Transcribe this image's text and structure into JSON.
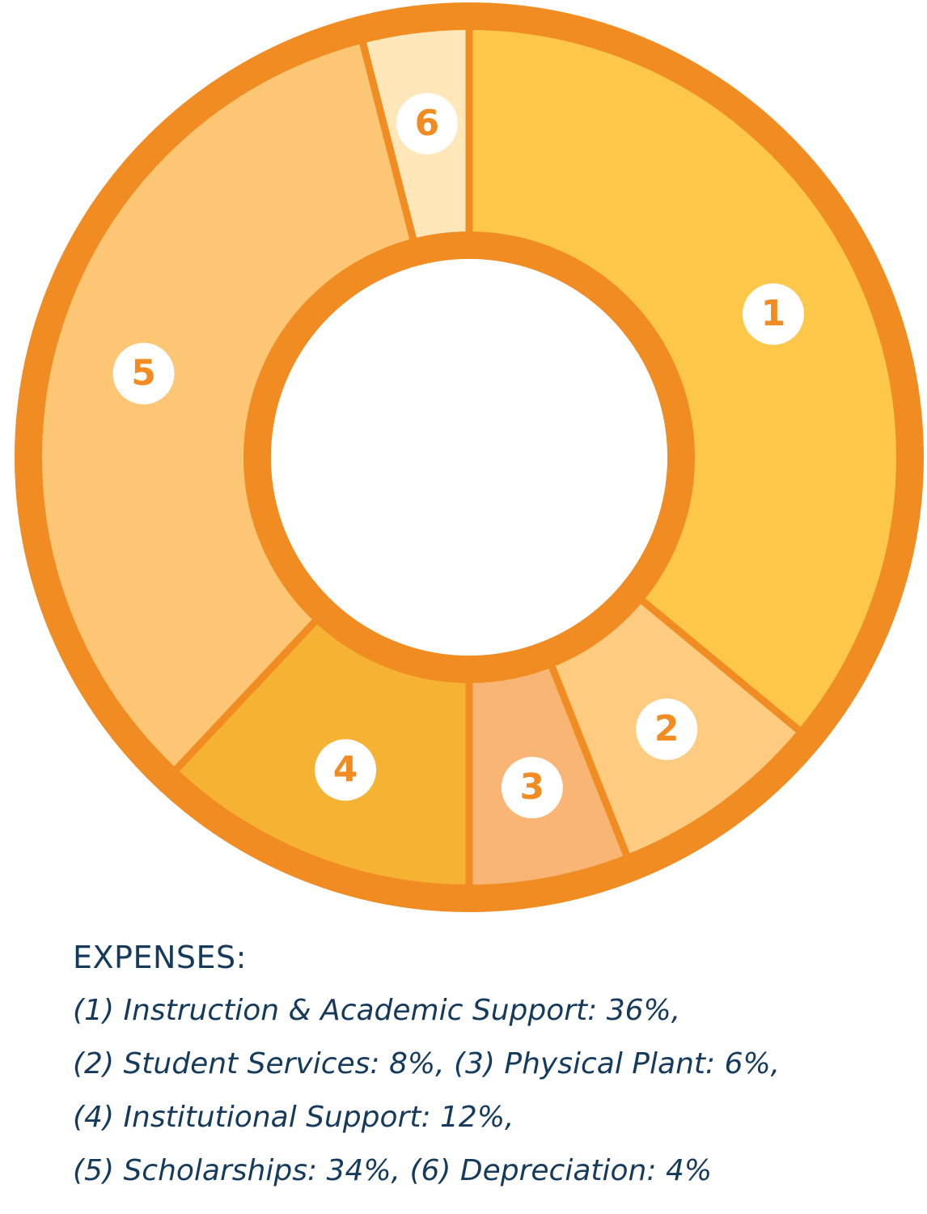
{
  "chart_data": {
    "type": "pie",
    "variant": "donut",
    "legend_placement": "bottom",
    "legend_title": "EXPENSES:",
    "slices": [
      {
        "label": "1",
        "name": "Instruction & Academic Support",
        "value": 36,
        "color": "#fdc84a"
      },
      {
        "label": "2",
        "name": "Student Services",
        "value": 8,
        "color": "#fdcc80"
      },
      {
        "label": "3",
        "name": "Physical Plant",
        "value": 6,
        "color": "#f9b574"
      },
      {
        "label": "4",
        "name": "Institutional Support",
        "value": 12,
        "color": "#f6b233"
      },
      {
        "label": "5",
        "name": "Scholarships",
        "value": 34,
        "color": "#fcc674"
      },
      {
        "label": "6",
        "name": "Depreciation",
        "value": 4,
        "color": "#ffe7b9"
      }
    ],
    "legend_lines": [
      "(1) Instruction & Academic Support: 36%,",
      "(2) Student Services: 8%, (3) Physical Plant: 6%,",
      "(4) Institutional Support: 12%,",
      "(5) Scholarships: 34%, (6) Depreciation: 4%"
    ]
  },
  "colors": {
    "outline": "#f08c22",
    "label_circle": "#ffffff",
    "label_text": "#f08c22",
    "legend_text": "#163a5c"
  }
}
